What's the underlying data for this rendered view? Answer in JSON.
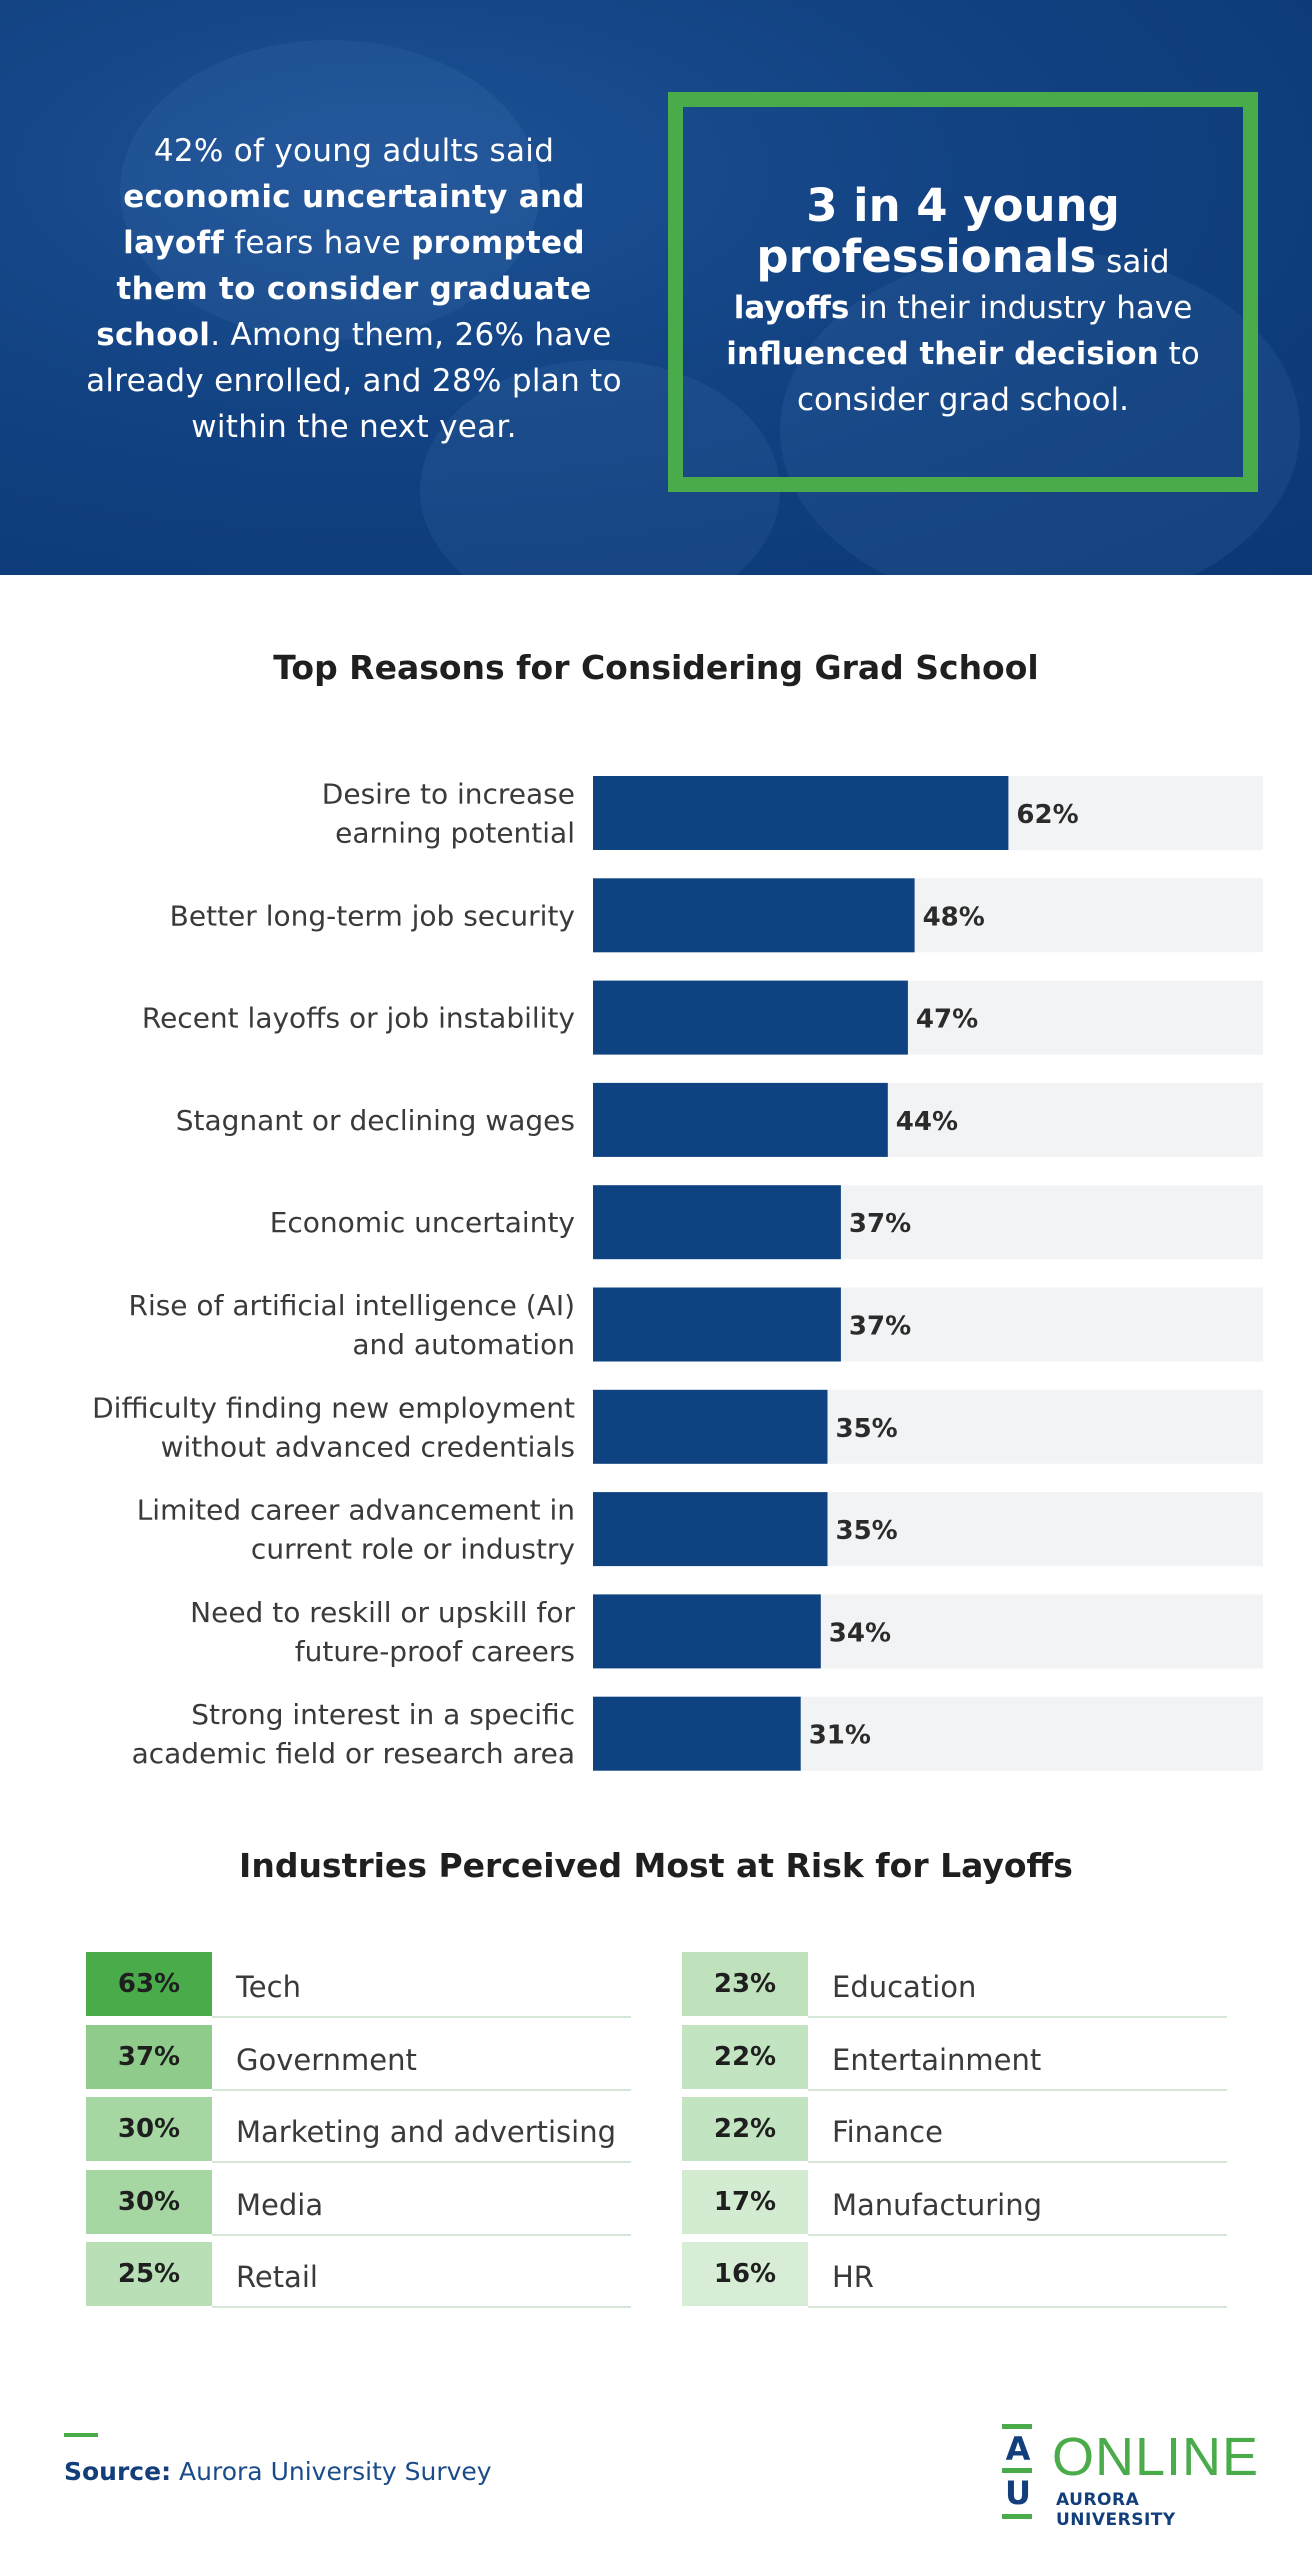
{
  "hero": {
    "left_parts": [
      {
        "text": "42% of young adults said ",
        "bold": false
      },
      {
        "text": "economic uncertainty and layoff",
        "bold": true
      },
      {
        "text": " fears have ",
        "bold": false
      },
      {
        "text": "prompted them to consider graduate school",
        "bold": true
      },
      {
        "text": ". Among them, 26% have already enrolled, and 28% plan to within the next year.",
        "bold": false
      }
    ],
    "box_headline": "3 in 4 young professionals",
    "box_parts": [
      {
        "text": " said ",
        "bold": false
      },
      {
        "text": "layoffs",
        "bold": true
      },
      {
        "text": " in their industry have ",
        "bold": false
      },
      {
        "text": "influenced their decision",
        "bold": true
      },
      {
        "text": " to consider grad school.",
        "bold": false
      }
    ],
    "box_border_color": "#4aab4b"
  },
  "chart_data": {
    "type": "bar",
    "orientation": "horizontal",
    "title": "Top Reasons for Considering Grad School",
    "categories": [
      [
        "Desire to increase",
        "earning potential"
      ],
      [
        "Better long-term job security"
      ],
      [
        "Recent layoffs or job instability"
      ],
      [
        "Stagnant or declining wages"
      ],
      [
        "Economic uncertainty"
      ],
      [
        "Rise of artificial intelligence (AI)",
        "and automation"
      ],
      [
        "Difficulty finding new employment",
        "without advanced credentials"
      ],
      [
        "Limited career advancement in",
        "current role or industry"
      ],
      [
        "Need to reskill or upskill for",
        "future-proof careers"
      ],
      [
        "Strong interest in a specific",
        "academic field or research area"
      ]
    ],
    "values": [
      62,
      48,
      47,
      44,
      37,
      37,
      35,
      35,
      34,
      31
    ],
    "value_suffix": "%",
    "xlim": [
      0,
      100
    ],
    "bar_color": "#0e4281",
    "track_color": "#f2f3f5",
    "grid": false
  },
  "industries": {
    "title": "Industries Perceived Most at Risk for Layoffs",
    "left": [
      {
        "pct": "63%",
        "label": "Tech",
        "color": "#4aab4b"
      },
      {
        "pct": "37%",
        "label": "Government",
        "color": "#8fcc8c"
      },
      {
        "pct": "30%",
        "label": "Marketing and advertising",
        "color": "#a6d7a3"
      },
      {
        "pct": "30%",
        "label": "Media",
        "color": "#a6d7a3"
      },
      {
        "pct": "25%",
        "label": "Retail",
        "color": "#b8dfb5"
      }
    ],
    "right": [
      {
        "pct": "23%",
        "label": "Education",
        "color": "#bfe2bc"
      },
      {
        "pct": "22%",
        "label": "Entertainment",
        "color": "#c3e4c0"
      },
      {
        "pct": "22%",
        "label": "Finance",
        "color": "#c3e4c0"
      },
      {
        "pct": "17%",
        "label": "Manufacturing",
        "color": "#d3ebd1"
      },
      {
        "pct": "16%",
        "label": "HR",
        "color": "#d7edd5"
      }
    ]
  },
  "footer": {
    "source_label": "Source:",
    "source_text": "Aurora University Survey",
    "logo_letter_a": "A",
    "logo_letter_u": "U",
    "logo_online": "ONLINE",
    "logo_sub": "AURORA UNIVERSITY"
  }
}
